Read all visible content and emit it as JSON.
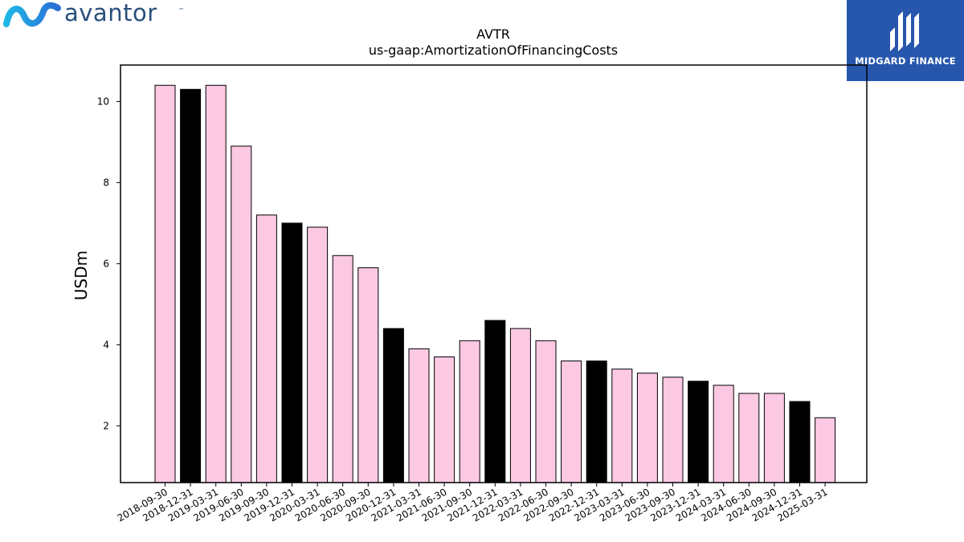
{
  "logos": {
    "left_wordmark": "avantor",
    "left_trademark": "™",
    "right_name": "MIDGARD FINANCE",
    "right_bg": "#2757ad",
    "left_mark_colors": [
      "#1fb8e6",
      "#2a6fd6"
    ]
  },
  "chart_data": {
    "type": "bar",
    "title": "AVTR",
    "subtitle": "us-gaap:AmortizationOfFinancingCosts",
    "ylabel": "USDm",
    "xlabel": "",
    "ylim": [
      0.6,
      10.9
    ],
    "yticks": [
      2,
      4,
      6,
      8,
      10
    ],
    "grid": false,
    "colors": {
      "pink": "#fbc9e2",
      "black": "#000000"
    },
    "categories": [
      "2018-09-30",
      "2018-12-31",
      "2019-03-31",
      "2019-06-30",
      "2019-09-30",
      "2019-12-31",
      "2020-03-31",
      "2020-06-30",
      "2020-09-30",
      "2020-12-31",
      "2021-03-31",
      "2021-06-30",
      "2021-09-30",
      "2021-12-31",
      "2022-03-31",
      "2022-06-30",
      "2022-09-30",
      "2022-12-31",
      "2023-03-31",
      "2023-06-30",
      "2023-09-30",
      "2023-12-31",
      "2024-03-31",
      "2024-06-30",
      "2024-09-30",
      "2024-12-31",
      "2025-03-31"
    ],
    "values": [
      10.4,
      10.3,
      10.4,
      8.9,
      7.2,
      7.0,
      6.9,
      6.2,
      5.9,
      4.4,
      3.9,
      3.7,
      4.1,
      4.6,
      4.4,
      4.1,
      3.6,
      3.6,
      3.4,
      3.3,
      3.2,
      3.1,
      3.0,
      2.8,
      2.8,
      2.6,
      2.2
    ],
    "bar_colors": [
      "pink",
      "black",
      "pink",
      "pink",
      "pink",
      "black",
      "pink",
      "pink",
      "pink",
      "black",
      "pink",
      "pink",
      "pink",
      "black",
      "pink",
      "pink",
      "pink",
      "black",
      "pink",
      "pink",
      "pink",
      "black",
      "pink",
      "pink",
      "pink",
      "black",
      "pink"
    ]
  }
}
